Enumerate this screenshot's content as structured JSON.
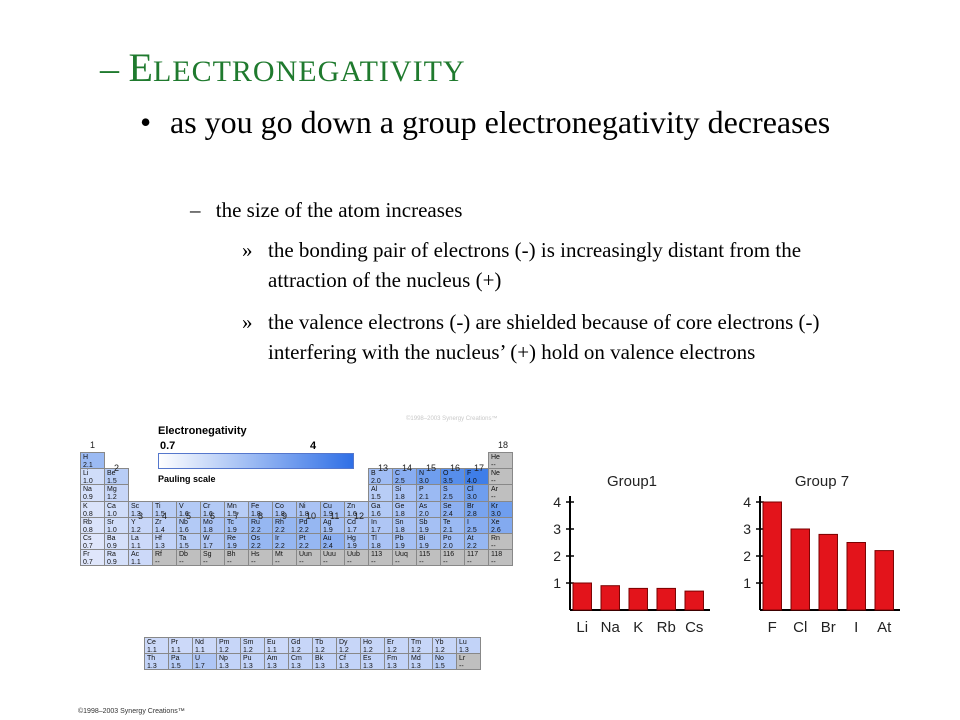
{
  "slide": {
    "title_dash": "–",
    "title": "Electronegativity",
    "bullet_marker": "•",
    "bullet": "as you go down a group electronegativity decreases",
    "sub_marker": "–",
    "sub": "the size of the atom increases",
    "points": [
      {
        "marker": "»",
        "text": "the bonding pair of electrons (-)  is increasingly distant from the attraction of the nucleus (+)"
      },
      {
        "marker": "»",
        "text": "the valence electrons (-) are shielded because of core electrons (-) interfering with the nucleus’ (+) hold on valence electrons"
      }
    ]
  },
  "periodic_table": {
    "legend_title": "Electronegativity",
    "legend_min": "0.7",
    "legend_max": "4",
    "legend_scale": "Pauling scale",
    "watermark": "©1998–2003 Synergy Creations™",
    "copyright": "©1998–2003 Synergy Creations™",
    "group_labels": [
      "1",
      "2",
      "3",
      "4",
      "5",
      "6",
      "7",
      "8",
      "9",
      "10",
      "11",
      "12",
      "13",
      "14",
      "15",
      "16",
      "17",
      "18"
    ],
    "colors": {
      "low": "#dfe6fb",
      "high": "#3f7ee8",
      "none": "#bfbfbf"
    },
    "main": [
      [
        "H",
        "2.1",
        1,
        1
      ],
      [
        "He",
        "--",
        1,
        18
      ],
      [
        "Li",
        "1.0",
        2,
        1
      ],
      [
        "Be",
        "1.5",
        2,
        2
      ],
      [
        "B",
        "2.0",
        2,
        13
      ],
      [
        "C",
        "2.5",
        2,
        14
      ],
      [
        "N",
        "3.0",
        2,
        15
      ],
      [
        "O",
        "3.5",
        2,
        16
      ],
      [
        "F",
        "4.0",
        2,
        17
      ],
      [
        "Ne",
        "--",
        2,
        18
      ],
      [
        "Na",
        "0.9",
        3,
        1
      ],
      [
        "Mg",
        "1.2",
        3,
        2
      ],
      [
        "Al",
        "1.5",
        3,
        13
      ],
      [
        "Si",
        "1.8",
        3,
        14
      ],
      [
        "P",
        "2.1",
        3,
        15
      ],
      [
        "S",
        "2.5",
        3,
        16
      ],
      [
        "Cl",
        "3.0",
        3,
        17
      ],
      [
        "Ar",
        "--",
        3,
        18
      ],
      [
        "K",
        "0.8",
        4,
        1
      ],
      [
        "Ca",
        "1.0",
        4,
        2
      ],
      [
        "Sc",
        "1.3",
        4,
        3
      ],
      [
        "Ti",
        "1.5",
        4,
        4
      ],
      [
        "V",
        "1.6",
        4,
        5
      ],
      [
        "Cr",
        "1.6",
        4,
        6
      ],
      [
        "Mn",
        "1.5",
        4,
        7
      ],
      [
        "Fe",
        "1.8",
        4,
        8
      ],
      [
        "Co",
        "1.8",
        4,
        9
      ],
      [
        "Ni",
        "1.8",
        4,
        10
      ],
      [
        "Cu",
        "1.9",
        4,
        11
      ],
      [
        "Zn",
        "1.6",
        4,
        12
      ],
      [
        "Ga",
        "1.6",
        4,
        13
      ],
      [
        "Ge",
        "1.8",
        4,
        14
      ],
      [
        "As",
        "2.0",
        4,
        15
      ],
      [
        "Se",
        "2.4",
        4,
        16
      ],
      [
        "Br",
        "2.8",
        4,
        17
      ],
      [
        "Kr",
        "3.0",
        4,
        18
      ],
      [
        "Rb",
        "0.8",
        5,
        1
      ],
      [
        "Sr",
        "1.0",
        5,
        2
      ],
      [
        "Y",
        "1.2",
        5,
        3
      ],
      [
        "Zr",
        "1.4",
        5,
        4
      ],
      [
        "Nb",
        "1.6",
        5,
        5
      ],
      [
        "Mo",
        "1.8",
        5,
        6
      ],
      [
        "Tc",
        "1.9",
        5,
        7
      ],
      [
        "Ru",
        "2.2",
        5,
        8
      ],
      [
        "Rh",
        "2.2",
        5,
        9
      ],
      [
        "Pd",
        "2.2",
        5,
        10
      ],
      [
        "Ag",
        "1.9",
        5,
        11
      ],
      [
        "Cd",
        "1.7",
        5,
        12
      ],
      [
        "In",
        "1.7",
        5,
        13
      ],
      [
        "Sn",
        "1.8",
        5,
        14
      ],
      [
        "Sb",
        "1.9",
        5,
        15
      ],
      [
        "Te",
        "2.1",
        5,
        16
      ],
      [
        "I",
        "2.5",
        5,
        17
      ],
      [
        "Xe",
        "2.6",
        5,
        18
      ],
      [
        "Cs",
        "0.7",
        6,
        1
      ],
      [
        "Ba",
        "0.9",
        6,
        2
      ],
      [
        "La",
        "1.1",
        6,
        3
      ],
      [
        "Hf",
        "1.3",
        6,
        4
      ],
      [
        "Ta",
        "1.5",
        6,
        5
      ],
      [
        "W",
        "1.7",
        6,
        6
      ],
      [
        "Re",
        "1.9",
        6,
        7
      ],
      [
        "Os",
        "2.2",
        6,
        8
      ],
      [
        "Ir",
        "2.2",
        6,
        9
      ],
      [
        "Pt",
        "2.2",
        6,
        10
      ],
      [
        "Au",
        "2.4",
        6,
        11
      ],
      [
        "Hg",
        "1.9",
        6,
        12
      ],
      [
        "Tl",
        "1.8",
        6,
        13
      ],
      [
        "Pb",
        "1.9",
        6,
        14
      ],
      [
        "Bi",
        "1.9",
        6,
        15
      ],
      [
        "Po",
        "2.0",
        6,
        16
      ],
      [
        "At",
        "2.2",
        6,
        17
      ],
      [
        "Rn",
        "--",
        6,
        18
      ],
      [
        "Fr",
        "0.7",
        7,
        1
      ],
      [
        "Ra",
        "0.9",
        7,
        2
      ],
      [
        "Ac",
        "1.1",
        7,
        3
      ],
      [
        "Rf",
        "--",
        7,
        4
      ],
      [
        "Db",
        "--",
        7,
        5
      ],
      [
        "Sg",
        "--",
        7,
        6
      ],
      [
        "Bh",
        "--",
        7,
        7
      ],
      [
        "Hs",
        "--",
        7,
        8
      ],
      [
        "Mt",
        "--",
        7,
        9
      ],
      [
        "Uun",
        "--",
        7,
        10
      ],
      [
        "Uuu",
        "--",
        7,
        11
      ],
      [
        "Uub",
        "--",
        7,
        12
      ],
      [
        "113",
        "--",
        7,
        13
      ],
      [
        "Uuq",
        "--",
        7,
        14
      ],
      [
        "115",
        "--",
        7,
        15
      ],
      [
        "116",
        "--",
        7,
        16
      ],
      [
        "117",
        "--",
        7,
        17
      ],
      [
        "118",
        "--",
        7,
        18
      ]
    ],
    "lanthanides": [
      [
        "Ce",
        "1.1"
      ],
      [
        "Pr",
        "1.1"
      ],
      [
        "Nd",
        "1.1"
      ],
      [
        "Pm",
        "1.2"
      ],
      [
        "Sm",
        "1.2"
      ],
      [
        "Eu",
        "1.1"
      ],
      [
        "Gd",
        "1.2"
      ],
      [
        "Tb",
        "1.2"
      ],
      [
        "Dy",
        "1.2"
      ],
      [
        "Ho",
        "1.2"
      ],
      [
        "Er",
        "1.2"
      ],
      [
        "Tm",
        "1.2"
      ],
      [
        "Yb",
        "1.2"
      ],
      [
        "Lu",
        "1.3"
      ]
    ],
    "actinides": [
      [
        "Th",
        "1.3"
      ],
      [
        "Pa",
        "1.5"
      ],
      [
        "U",
        "1.7"
      ],
      [
        "Np",
        "1.3"
      ],
      [
        "Pu",
        "1.3"
      ],
      [
        "Am",
        "1.3"
      ],
      [
        "Cm",
        "1.3"
      ],
      [
        "Bk",
        "1.3"
      ],
      [
        "Cf",
        "1.3"
      ],
      [
        "Es",
        "1.3"
      ],
      [
        "Fm",
        "1.3"
      ],
      [
        "Md",
        "1.3"
      ],
      [
        "No",
        "1.5"
      ],
      [
        "Lr",
        "--"
      ]
    ]
  },
  "chart_data": [
    {
      "type": "bar",
      "title": "Group1",
      "categories": [
        "Li",
        "Na",
        "K",
        "Rb",
        "Cs"
      ],
      "values": [
        1.0,
        0.9,
        0.8,
        0.8,
        0.7
      ],
      "ylim": [
        0,
        4
      ],
      "yticks": [
        "1",
        "2",
        "3",
        "4"
      ],
      "bar_color": "#e3141b"
    },
    {
      "type": "bar",
      "title": "Group 7",
      "categories": [
        "F",
        "Cl",
        "Br",
        "I",
        "At"
      ],
      "values": [
        4.0,
        3.0,
        2.8,
        2.5,
        2.2
      ],
      "ylim": [
        0,
        4
      ],
      "yticks": [
        "1",
        "2",
        "3",
        "4"
      ],
      "bar_color": "#e3141b"
    }
  ]
}
